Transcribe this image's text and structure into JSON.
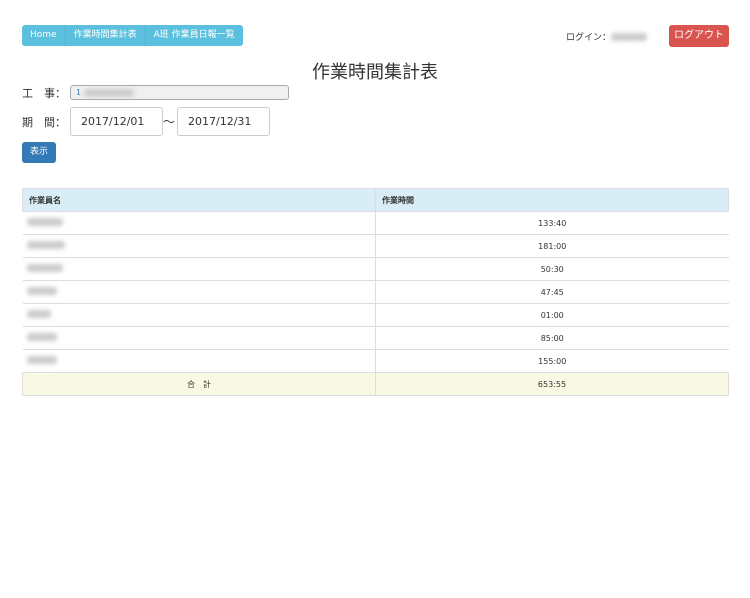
{
  "nav": {
    "items": [
      "Home",
      "作業時間集計表",
      "A班 作業員日報一覧"
    ]
  },
  "header": {
    "login_label": "ログイン：",
    "logout": "ログアウト"
  },
  "page_title": "作業時間集計表",
  "form": {
    "project_label": "工　事：",
    "project_value": "1",
    "period_label": "期　間：",
    "from": "2017/12/01",
    "tilde": "〜",
    "to": "2017/12/31",
    "show_button": "表示"
  },
  "table": {
    "headers": [
      "作業員名",
      "作業時間"
    ],
    "rows": [
      {
        "time": "133:40"
      },
      {
        "time": "181:00"
      },
      {
        "time": "50:30"
      },
      {
        "time": "47:45"
      },
      {
        "time": "01:00"
      },
      {
        "time": "85:00"
      },
      {
        "time": "155:00"
      }
    ],
    "total_label": "合　計",
    "total": "653:55"
  }
}
